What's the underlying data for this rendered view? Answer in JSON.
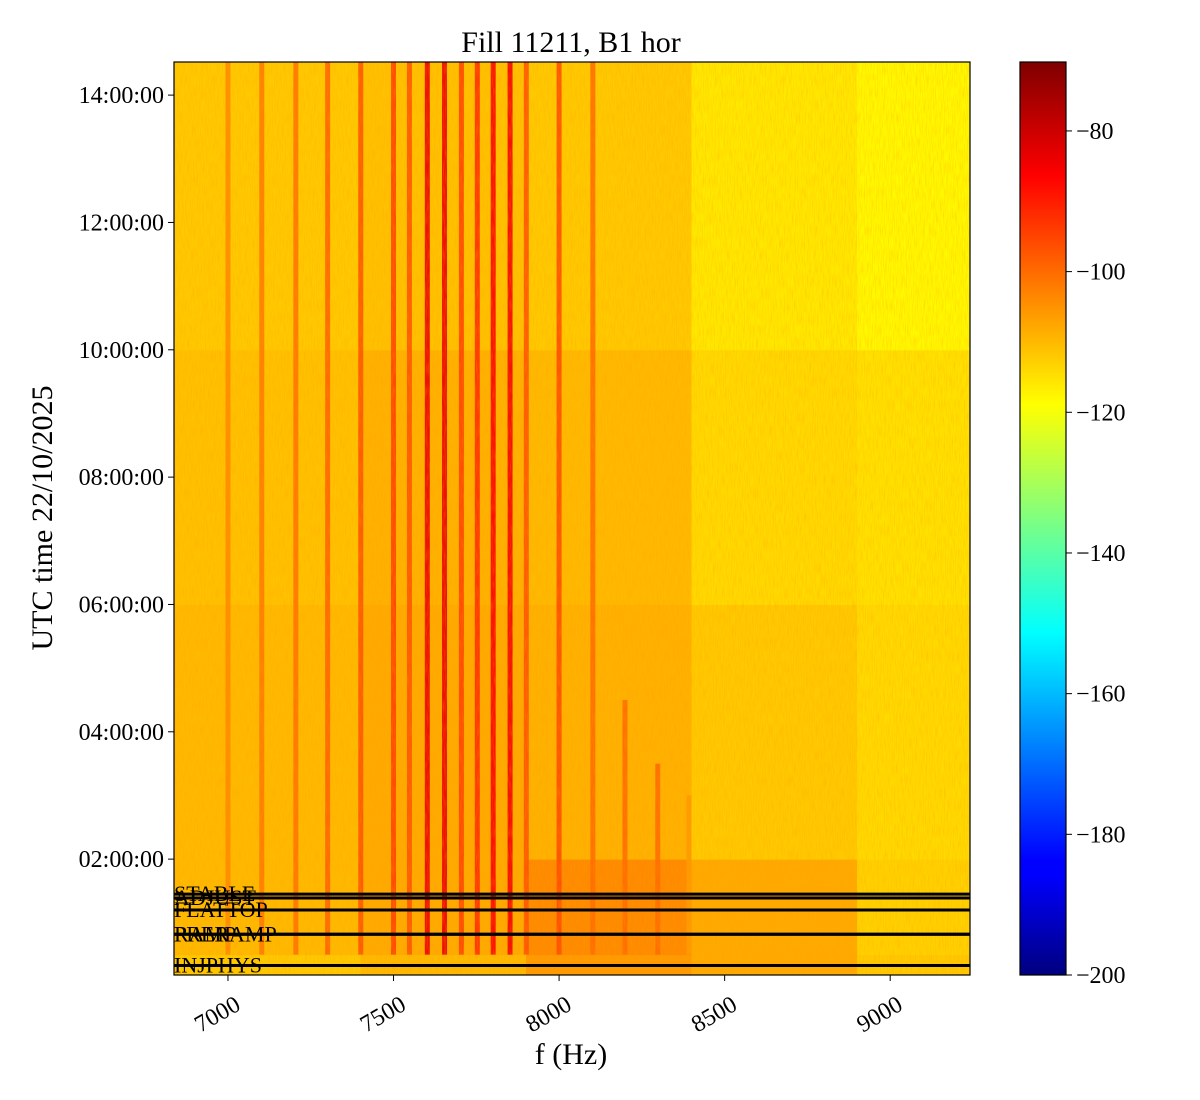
{
  "chart_data": {
    "type": "spectrogram",
    "title": "Fill 11211, B1 hor",
    "xlabel": "f (Hz)",
    "ylabel": "UTC time 22/10/2025",
    "xlim": [
      6837,
      9241
    ],
    "xticks": [
      7000,
      7500,
      8000,
      8500,
      9000
    ],
    "ylim": [
      0.18,
      14.52
    ],
    "yticks": [
      {
        "value": 2,
        "label": "02:00:00"
      },
      {
        "value": 4,
        "label": "04:00:00"
      },
      {
        "value": 6,
        "label": "06:00:00"
      },
      {
        "value": 8,
        "label": "08:00:00"
      },
      {
        "value": 10,
        "label": "10:00:00"
      },
      {
        "value": 12,
        "label": "12:00:00"
      },
      {
        "value": 14,
        "label": "14:00:00"
      }
    ],
    "colormap": "jet",
    "clim": [
      -200,
      -70.2
    ],
    "cticks": [
      {
        "value": -200,
        "label": "−200"
      },
      {
        "value": -180,
        "label": "−180"
      },
      {
        "value": -160,
        "label": "−160"
      },
      {
        "value": -140,
        "label": "−140"
      },
      {
        "value": -120,
        "label": "−120"
      },
      {
        "value": -100,
        "label": "−100"
      },
      {
        "value": -80,
        "label": "−80"
      }
    ],
    "grid": {
      "f_edges": [
        6837,
        7400,
        7900,
        8400,
        8900,
        9241
      ],
      "t_edges": [
        0.18,
        0.5,
        2,
        6,
        10,
        14.52
      ],
      "z": [
        [
          -112,
          -110,
          -106,
          -108,
          -112
        ],
        [
          -110,
          -108,
          -104,
          -108,
          -113
        ],
        [
          -110,
          -108,
          -109,
          -112,
          -114
        ],
        [
          -111,
          -109,
          -110,
          -114,
          -115
        ],
        [
          -112,
          -111,
          -112,
          -116,
          -118
        ]
      ]
    },
    "lines": [
      {
        "f": 7000,
        "level": -104,
        "t_start": 0.5,
        "t_end": 14.52
      },
      {
        "f": 7102,
        "level": -102,
        "t_start": 0.5,
        "t_end": 14.52
      },
      {
        "f": 7205,
        "level": -101,
        "t_start": 0.5,
        "t_end": 14.52
      },
      {
        "f": 7301,
        "level": -99,
        "t_start": 0.5,
        "t_end": 14.52
      },
      {
        "f": 7401,
        "level": -97,
        "t_start": 0.5,
        "t_end": 14.52
      },
      {
        "f": 7500,
        "level": -95,
        "t_start": 0.5,
        "t_end": 14.52
      },
      {
        "f": 7548,
        "level": -97,
        "t_start": 0.5,
        "t_end": 14.52
      },
      {
        "f": 7602,
        "level": -84,
        "t_start": 0.5,
        "t_end": 14.52
      },
      {
        "f": 7654,
        "level": -84,
        "t_start": 0.5,
        "t_end": 14.52
      },
      {
        "f": 7705,
        "level": -95,
        "t_start": 0.5,
        "t_end": 14.52
      },
      {
        "f": 7753,
        "level": -92,
        "t_start": 0.5,
        "t_end": 14.52
      },
      {
        "f": 7801,
        "level": -86,
        "t_start": 0.5,
        "t_end": 14.52
      },
      {
        "f": 7852,
        "level": -85,
        "t_start": 0.5,
        "t_end": 14.52
      },
      {
        "f": 7901,
        "level": -97,
        "t_start": 0.5,
        "t_end": 14.52
      },
      {
        "f": 8000,
        "level": -96,
        "t_start": 0.5,
        "t_end": 14.52
      },
      {
        "f": 8102,
        "level": -100,
        "t_start": 0.5,
        "t_end": 14.52
      },
      {
        "f": 8199,
        "level": -100,
        "t_start": 0.5,
        "t_end": 4.5
      },
      {
        "f": 8298,
        "level": -100,
        "t_start": 0.5,
        "t_end": 3.5
      },
      {
        "f": 8392,
        "level": -106,
        "t_start": 0.5,
        "t_end": 3
      }
    ],
    "events": [
      {
        "label": "STABLE",
        "time": 1.45
      },
      {
        "label": "ADJUST",
        "time": 1.39
      },
      {
        "label": "FLATTOP",
        "time": 1.2
      },
      {
        "label": "RAMP",
        "time": 0.82
      },
      {
        "label": "PRERAMP",
        "time": 0.82
      },
      {
        "label": "INJPHYS",
        "time": 0.33
      }
    ]
  }
}
